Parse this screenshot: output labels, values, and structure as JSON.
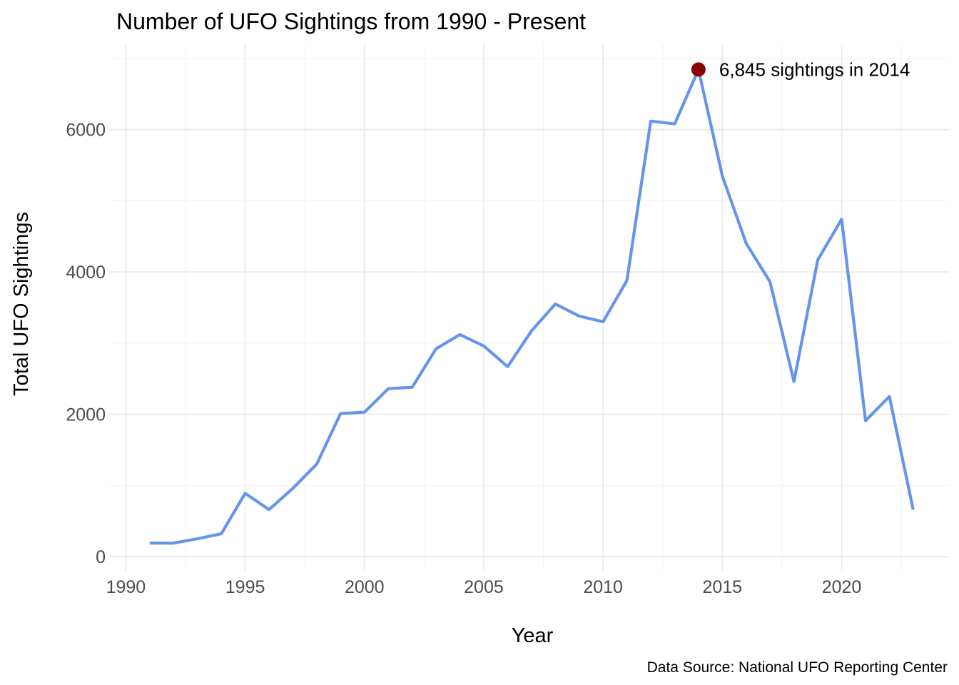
{
  "chart_data": {
    "type": "line",
    "title": "Number of UFO Sightings from 1990 - Present",
    "xlabel": "Year",
    "ylabel": "Total UFO Sightings",
    "caption": "Data Source: National UFO Reporting Center",
    "xlim": [
      1989.3,
      2024.5
    ],
    "ylim": [
      -200,
      7200
    ],
    "x_ticks": [
      1990,
      1995,
      2000,
      2005,
      2010,
      2015,
      2020
    ],
    "y_ticks": [
      0,
      2000,
      4000,
      6000
    ],
    "grid": true,
    "line_color": "#6495ED",
    "highlight_color": "#8B0000",
    "series": [
      {
        "x": [
          1991,
          1992,
          1993,
          1994,
          1995,
          1996,
          1997,
          1998,
          1999,
          2000,
          2001,
          2002,
          2003,
          2004,
          2005,
          2006,
          2007,
          2008,
          2009,
          2010,
          2011,
          2012,
          2013,
          2014,
          2015,
          2016,
          2017,
          2018,
          2019,
          2020,
          2021,
          2022,
          2023
        ],
        "values": [
          190,
          190,
          250,
          320,
          890,
          660,
          960,
          1300,
          2010,
          2030,
          2360,
          2380,
          2920,
          3120,
          2960,
          2670,
          3170,
          3550,
          3380,
          3300,
          3880,
          6120,
          6080,
          6845,
          5350,
          4400,
          3860,
          2460,
          4170,
          4740,
          1910,
          2250,
          660
        ]
      }
    ],
    "annotation": {
      "x": 2014,
      "y": 6845,
      "text": "6,845 sightings in 2014"
    }
  }
}
